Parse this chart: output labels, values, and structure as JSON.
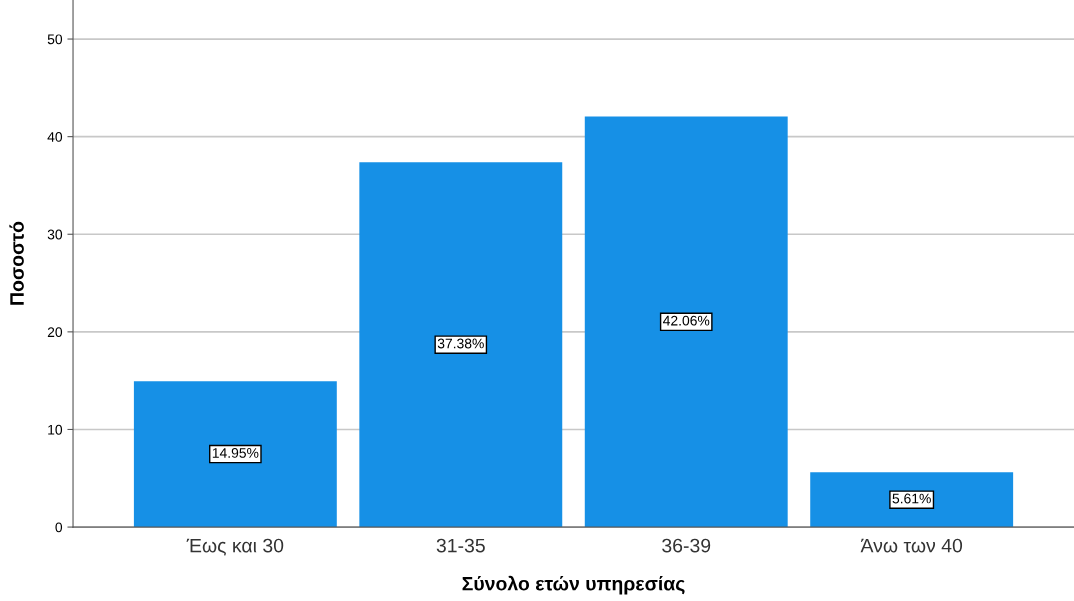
{
  "chart_data": {
    "type": "bar",
    "xlabel": "Σύνολο ετών υπηρεσίας",
    "ylabel": "Ποσοστό",
    "categories": [
      "Έως και 30",
      "31-35",
      "36-39",
      "Άνω των 40"
    ],
    "values": [
      14.95,
      37.38,
      42.06,
      5.61
    ],
    "value_labels": [
      "14.95%",
      "37.38%",
      "42.06%",
      "5.61%"
    ],
    "color": "#1690e6",
    "ylim": [
      0,
      54
    ],
    "yticks": [
      0,
      10,
      20,
      30,
      40,
      50
    ],
    "grid": "y"
  }
}
